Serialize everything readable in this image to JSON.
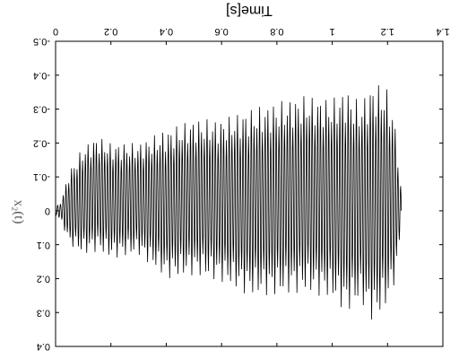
{
  "chart_data": {
    "type": "line",
    "orientation": "mirrored (image flipped horizontally and vertically)",
    "xlabel": "Time[s]",
    "ylabel": "x₂(t)",
    "xlim": [
      0,
      1.4
    ],
    "ylim": [
      -0.5,
      0.4
    ],
    "x_ticks": [
      0,
      0.2,
      0.4,
      0.6,
      0.8,
      1,
      1.2,
      1.4
    ],
    "x_tick_labels": [
      "0",
      "0.2",
      "0.4",
      "0.6",
      "0.8",
      "1",
      "1.2",
      "1.4"
    ],
    "y_ticks": [
      -0.5,
      -0.4,
      -0.3,
      -0.2,
      -0.1,
      0,
      0.1,
      0.2,
      0.3,
      0.4
    ],
    "y_tick_labels": [
      "-0.5",
      "-0.4",
      "-0.3",
      "-0.2",
      "-0.1",
      "0",
      "0.1",
      "0.2",
      "0.3",
      "0.4"
    ],
    "grid": false,
    "series": [
      {
        "oscillation_frequency_hz": 100,
        "end_time": 1.25,
        "envelope_time": [
          0,
          0.02,
          0.05,
          0.1,
          0.15,
          0.2,
          0.3,
          0.4,
          0.5,
          0.6,
          0.7,
          0.8,
          0.9,
          1.0,
          1.05,
          1.1,
          1.15,
          1.2,
          1.23,
          1.25
        ],
        "envelope_upper": [
          0.01,
          0.03,
          0.1,
          0.13,
          0.12,
          0.14,
          0.13,
          0.2,
          0.19,
          0.21,
          0.25,
          0.25,
          0.24,
          0.26,
          0.3,
          0.27,
          0.33,
          0.28,
          0.2,
          0.05
        ],
        "envelope_lower": [
          -0.01,
          -0.03,
          -0.12,
          -0.19,
          -0.22,
          -0.2,
          -0.2,
          -0.24,
          -0.27,
          -0.27,
          -0.3,
          -0.32,
          -0.34,
          -0.33,
          -0.36,
          -0.32,
          -0.38,
          -0.36,
          -0.25,
          -0.05
        ]
      }
    ]
  }
}
